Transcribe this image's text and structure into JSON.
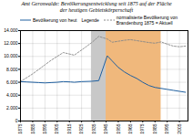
{
  "chart_data": {
    "type": "line",
    "title": "Amt Geroswalde: Bevölkerungsentwicklung seit 1875 auf der Fläche\nder heutigen Gebietskörperschaft",
    "legend_title": "Legende",
    "legend": "top",
    "grid": true,
    "xlim": [
      1875,
      2012
    ],
    "xticks": [
      1875,
      1885,
      1895,
      1905,
      1915,
      1925,
      1935,
      1945,
      1955,
      1965,
      1975,
      1985,
      1995,
      2005
    ],
    "ylim": [
      0,
      14000
    ],
    "yticks": [
      0,
      {
        "value": 2000,
        "label": "2.000"
      },
      {
        "value": 4000,
        "label": "4.000"
      },
      {
        "value": 6000,
        "label": "6.000"
      },
      {
        "value": 8000,
        "label": "8.000"
      },
      {
        "value": 10000,
        "label": "10.000"
      },
      {
        "value": 12000,
        "label": "12.000"
      },
      {
        "value": 14000,
        "label": "14.000"
      }
    ],
    "regions": [
      {
        "start": 1933,
        "end": 1945,
        "color": "#c8c8c8"
      },
      {
        "start": 1945,
        "end": 1990,
        "color": "#f0b87c"
      }
    ],
    "series": [
      {
        "name": "Bevölkerung von heut",
        "color": "#2060a0",
        "line_style": "solid",
        "x": [
          1875,
          1880,
          1885,
          1890,
          1895,
          1900,
          1905,
          1910,
          1916,
          1919,
          1925,
          1933,
          1939,
          1946,
          1950,
          1955,
          1960,
          1965,
          1970,
          1975,
          1980,
          1985,
          1990,
          1995,
          2000,
          2005,
          2010
        ],
        "values": [
          6100,
          6050,
          6000,
          5950,
          5900,
          5950,
          6000,
          6100,
          6050,
          6000,
          6100,
          6150,
          6250,
          10100,
          9300,
          8300,
          7600,
          7050,
          6600,
          6000,
          5500,
          5200,
          5050,
          4900,
          4750,
          4600,
          4450
        ]
      },
      {
        "name": "normalisierte Bevölkerung von\nBrandenburg 1875 = Aktuell",
        "color": "#888888",
        "line_style": "dotted",
        "x": [
          1875,
          1880,
          1885,
          1890,
          1895,
          1900,
          1905,
          1910,
          1919,
          1925,
          1933,
          1939,
          1946,
          1950,
          1955,
          1960,
          1965,
          1970,
          1975,
          1980,
          1985,
          1990,
          1995,
          2000,
          2005,
          2010
        ],
        "values": [
          6100,
          6700,
          7300,
          8000,
          8700,
          9400,
          10000,
          10600,
          10200,
          11000,
          12100,
          13100,
          12700,
          12200,
          12350,
          12500,
          12600,
          12450,
          12300,
          12150,
          12050,
          12250,
          11900,
          11600,
          11500,
          11600
        ]
      }
    ]
  }
}
